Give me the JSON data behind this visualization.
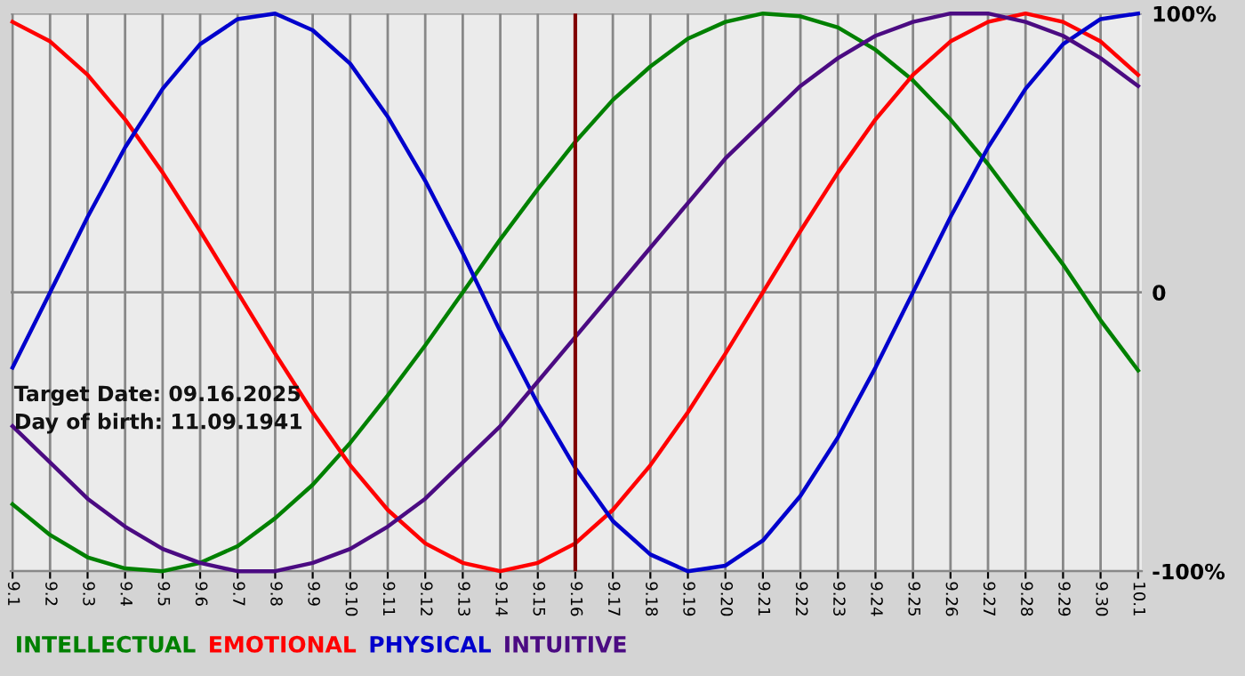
{
  "chart_data": {
    "type": "line",
    "categories": [
      "9.1",
      "9.2",
      "9.3",
      "9.4",
      "9.5",
      "9.6",
      "9.7",
      "9.8",
      "9.9",
      "9.10",
      "9.11",
      "9.12",
      "9.13",
      "9.14",
      "9.15",
      "9.16",
      "9.17",
      "9.18",
      "9.19",
      "9.20",
      "9.21",
      "9.22",
      "9.23",
      "9.24",
      "9.25",
      "9.26",
      "9.27",
      "9.28",
      "9.29",
      "9.30",
      "10.1"
    ],
    "series": [
      {
        "name": "INTELLECTUAL",
        "color": "#008000",
        "values": [
          -76,
          -87,
          -95,
          -99,
          -100,
          -97,
          -91,
          -81,
          -69,
          -54,
          -37,
          -19,
          0,
          19,
          37,
          54,
          69,
          81,
          91,
          97,
          100,
          99,
          95,
          87,
          76,
          62,
          46,
          28,
          10,
          -10,
          -28
        ]
      },
      {
        "name": "EMOTIONAL",
        "color": "#ff0000",
        "values": [
          97,
          90,
          78,
          62,
          43,
          22,
          0,
          -22,
          -43,
          -62,
          -78,
          -90,
          -97,
          -100,
          -97,
          -90,
          -78,
          -62,
          -43,
          -22,
          0,
          22,
          43,
          62,
          78,
          90,
          97,
          100,
          97,
          90,
          78
        ]
      },
      {
        "name": "PHYSICAL",
        "color": "#0000cc",
        "values": [
          -27,
          0,
          27,
          52,
          73,
          89,
          98,
          100,
          94,
          82,
          63,
          40,
          14,
          -14,
          -40,
          -63,
          -82,
          -94,
          -100,
          -98,
          -89,
          -73,
          -52,
          -27,
          0,
          27,
          52,
          73,
          89,
          98,
          100
        ]
      },
      {
        "name": "INTUITIVE",
        "color": "#4b0b82",
        "values": [
          -48,
          -61,
          -74,
          -84,
          -92,
          -97,
          -100,
          -100,
          -97,
          -92,
          -84,
          -74,
          -61,
          -48,
          -32,
          -16,
          0,
          16,
          32,
          48,
          61,
          74,
          84,
          92,
          97,
          100,
          100,
          97,
          92,
          84,
          74
        ]
      }
    ],
    "ylim": [
      -100,
      100
    ],
    "yticks": [
      {
        "value": 100,
        "label": "100%"
      },
      0,
      {
        "value": -100,
        "label": "-100%"
      }
    ],
    "ref_lines": [
      {
        "axis": "x",
        "value": "9.16",
        "color": "#800000"
      }
    ],
    "annotations": [
      "Target Date: 09.16.2025",
      "Day of birth: 11.09.1941"
    ],
    "grid": true,
    "legend": "bottom",
    "marker": "none",
    "line_style": "solid"
  }
}
